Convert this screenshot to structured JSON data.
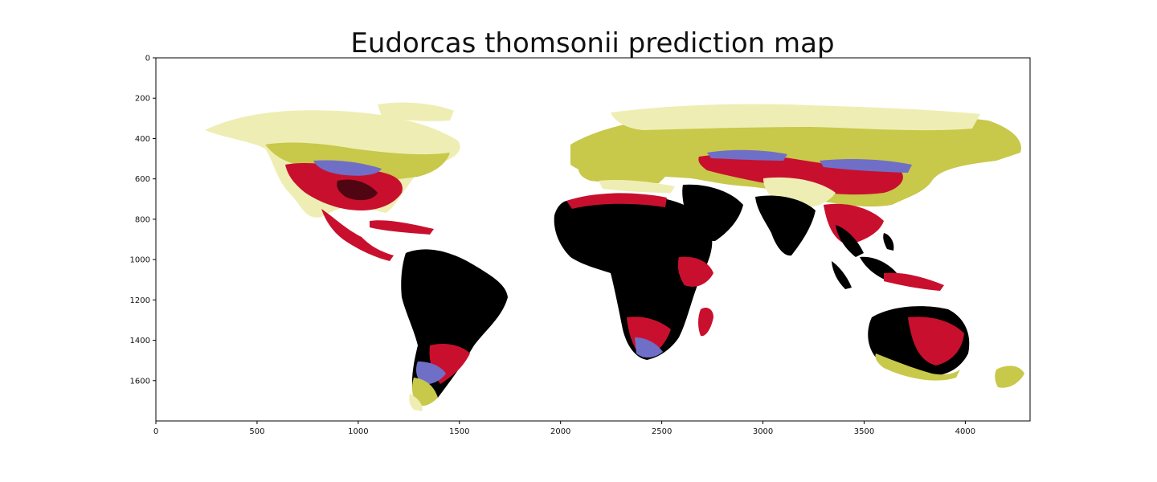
{
  "title": "Eudorcas thomsonii prediction map",
  "colors": {
    "high": "#000000",
    "medium_high": "#c8102e",
    "medium": "#6f6fc8",
    "low": "#c8c84a",
    "very_low": "#eeeeb4",
    "background": "#ffffff"
  },
  "chart_data": {
    "type": "heatmap",
    "title": "Eudorcas thomsonii prediction map",
    "xlabel": "",
    "ylabel": "",
    "xlim": [
      0,
      4320
    ],
    "ylim": [
      1800,
      0
    ],
    "x_ticks": [
      0,
      500,
      1000,
      1500,
      2000,
      2500,
      3000,
      3500,
      4000
    ],
    "y_ticks": [
      0,
      200,
      400,
      600,
      800,
      1000,
      1200,
      1400,
      1600
    ],
    "x_tick_labels": [
      "0",
      "500",
      "1000",
      "1500",
      "2000",
      "2500",
      "3000",
      "3500",
      "4000"
    ],
    "y_tick_labels": [
      "0",
      "200",
      "400",
      "600",
      "800",
      "1000",
      "1200",
      "1400",
      "1600"
    ],
    "grid": false,
    "legend": "none"
  }
}
